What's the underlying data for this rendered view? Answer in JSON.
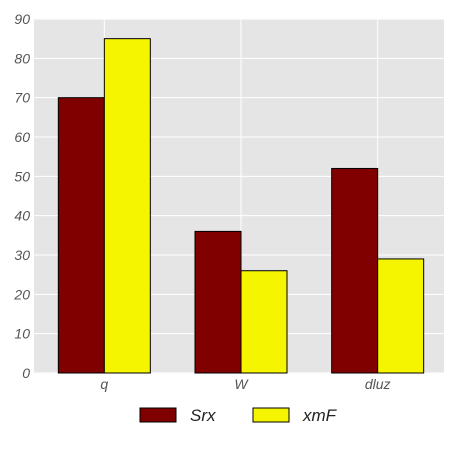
{
  "chart_data": {
    "type": "bar",
    "categories": [
      "q",
      "W",
      "dluz"
    ],
    "series": [
      {
        "name": "Srx",
        "color": "#800000",
        "values": [
          70,
          36,
          52
        ]
      },
      {
        "name": "xmF",
        "color": "#f5f500",
        "values": [
          85,
          26,
          29
        ]
      }
    ],
    "ylim": [
      0,
      90
    ],
    "yticks": [
      0,
      10,
      20,
      30,
      40,
      50,
      60,
      70,
      80,
      90
    ],
    "grid": true,
    "legend_position": "bottom-center"
  }
}
